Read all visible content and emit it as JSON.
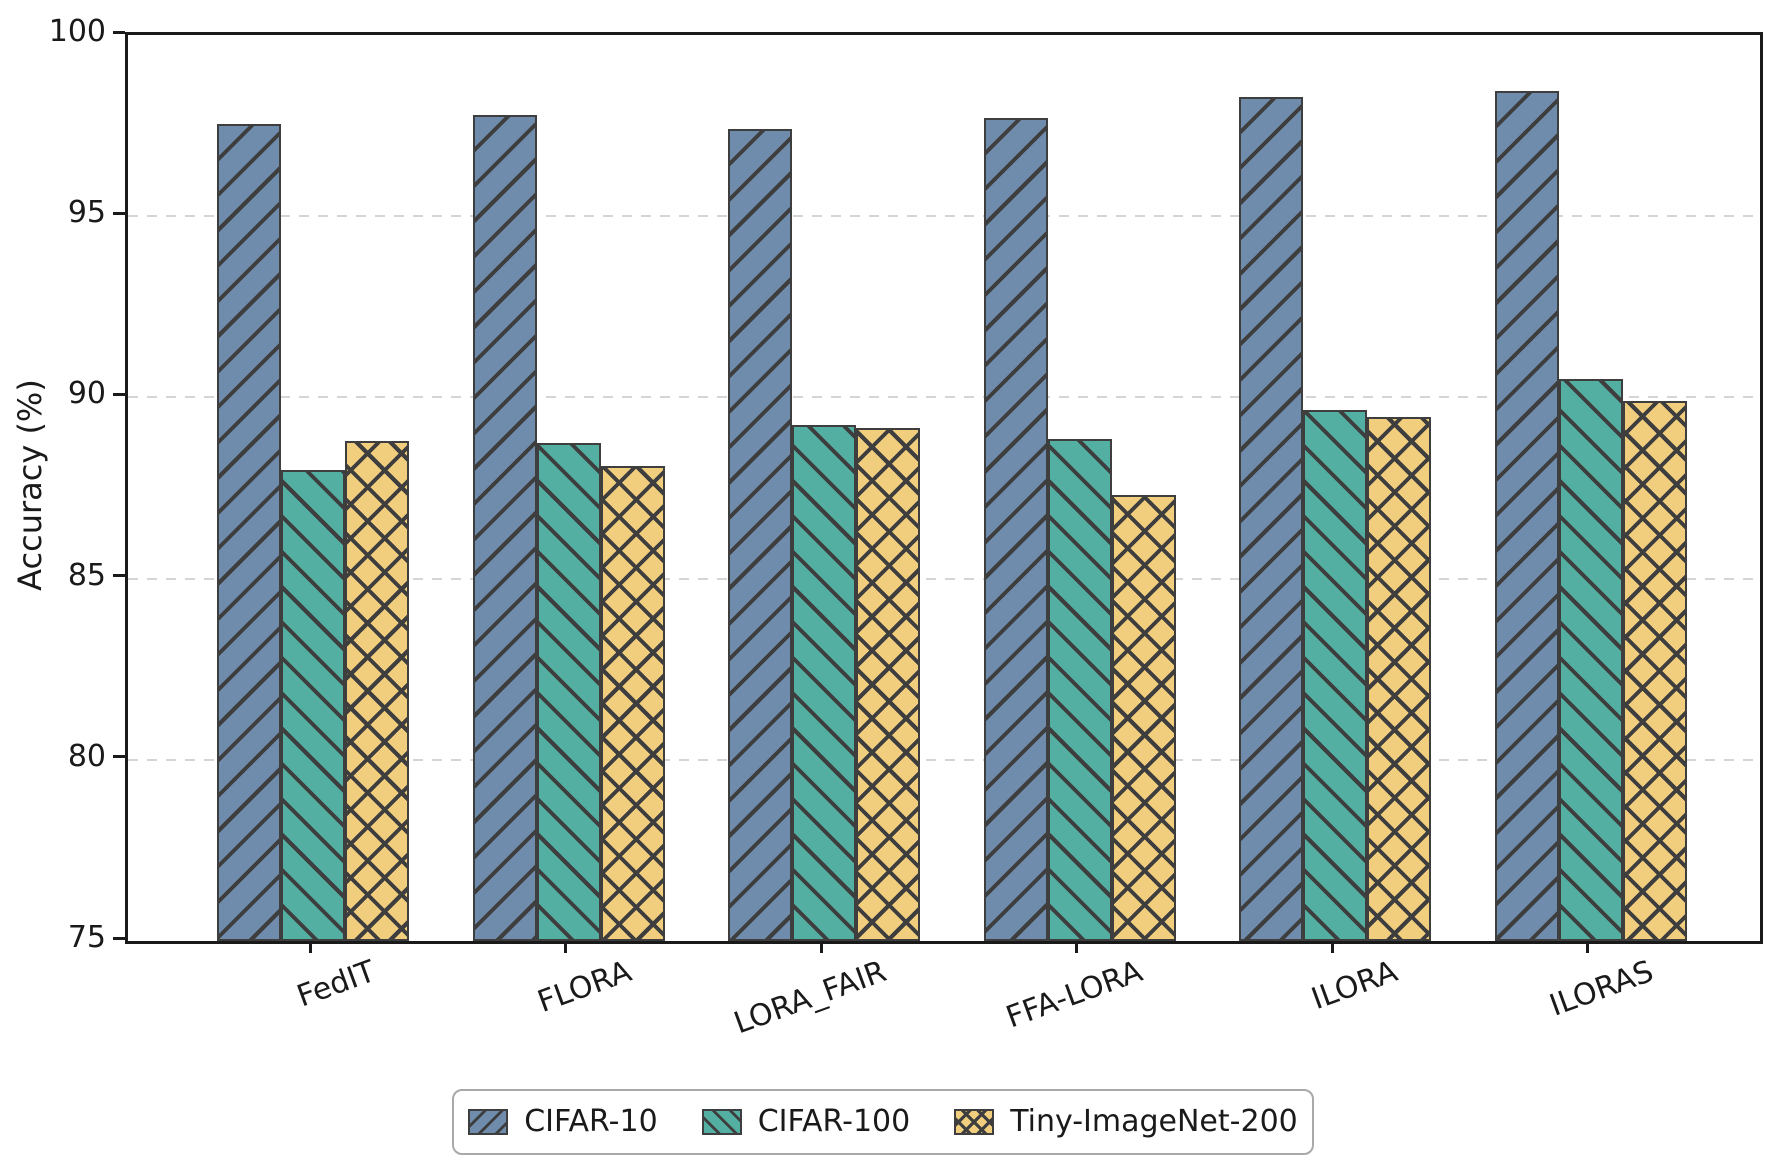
{
  "figure": {
    "background": "#FFFFFF"
  },
  "chart_data": {
    "type": "bar",
    "title": "",
    "xlabel": "",
    "ylabel": "Accuracy (%)",
    "ylim": [
      75,
      100
    ],
    "yticks": [
      75,
      80,
      85,
      90,
      95,
      100
    ],
    "grid": "horizontal-dashed",
    "legend_position": "bottom-center",
    "categories": [
      "FedIT",
      "FLORA",
      "LORA_FAIR",
      "FFA-LORA",
      "ILORA",
      "ILORAS"
    ],
    "series": [
      {
        "name": "CIFAR-10",
        "color": "#6F8CAC",
        "hatch": "/",
        "values": [
          97.55,
          97.8,
          97.4,
          97.7,
          98.3,
          98.45
        ]
      },
      {
        "name": "CIFAR-100",
        "color": "#52AFA2",
        "hatch": "\\",
        "values": [
          88.0,
          88.75,
          89.25,
          88.85,
          89.65,
          90.5
        ]
      },
      {
        "name": "Tiny-ImageNet-200",
        "color": "#F0CE7E",
        "hatch": "x",
        "values": [
          88.8,
          88.1,
          89.15,
          87.3,
          89.45,
          89.9
        ]
      }
    ],
    "edge_color": "#3E3E3E",
    "grid_color": "#D5D5D5",
    "spine_color": "#1A1A1A"
  }
}
